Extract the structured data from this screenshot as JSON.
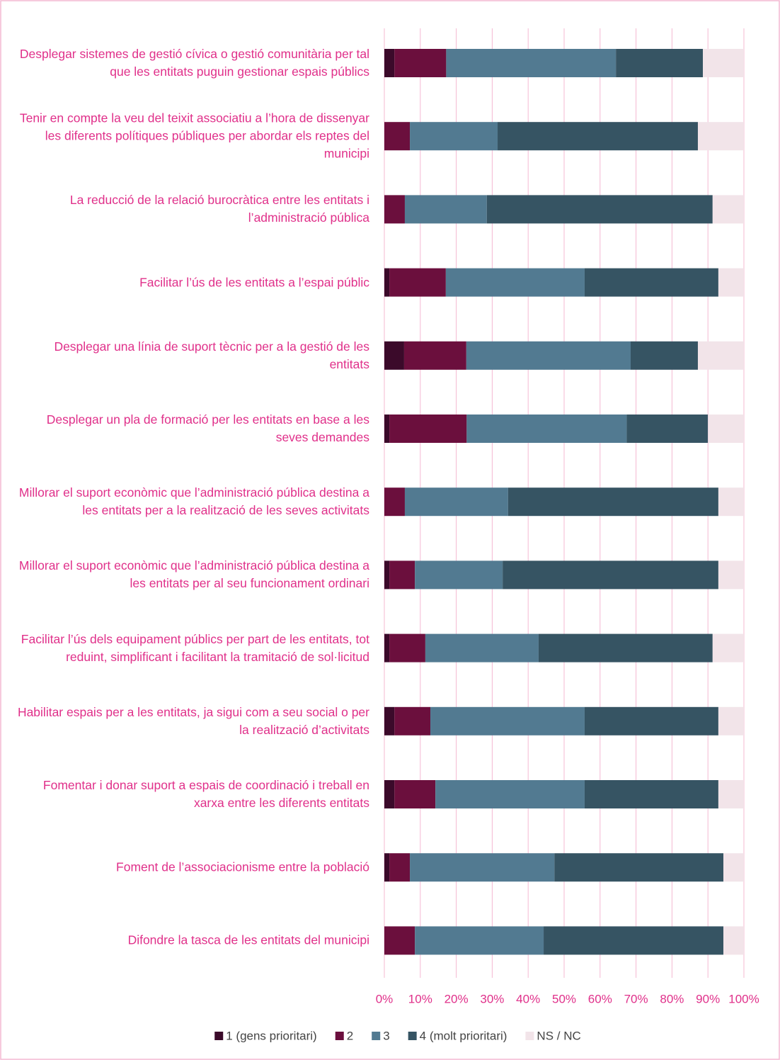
{
  "chart_data": {
    "type": "stacked_barh",
    "categories": [
      "Desplegar sistemes de gestió cívica o gestió comunitària per tal que les entitats puguin gestionar espais públics",
      "Tenir en compte la veu del teixit associatiu a l’hora de dissenyar les diferents polítiques públiques per abordar els reptes del municipi",
      "La reducció de la relació burocràtica entre les entitats i l’administració pública",
      "Facilitar l’ús de les entitats a l’espai públic",
      "Desplegar una línia de suport tècnic per a la gestió de les entitats",
      "Desplegar un pla de formació per les entitats en base a les seves demandes",
      "Millorar el suport econòmic que l’administració pública destina a les entitats per a la realització de les seves activitats",
      "Millorar el suport econòmic que l’administració pública destina a les entitats per al seu funcionament ordinari",
      "Facilitar l’ús dels equipament públics per part de les entitats, tot reduint, simplificant i facilitant la tramitació de sol·licitud",
      "Habilitar espais per a les entitats, ja sigui com a seu social o per la realització d’activitats",
      "Fomentar i donar suport a espais de coordinació i treball en xarxa entre les diferents entitats",
      "Foment de l’associacionisme entre la població",
      "Difondre la tasca de les entitats del municipi"
    ],
    "series": [
      {
        "name": "1 (gens prioritari)",
        "color": "#3b0a2a",
        "values": [
          2.8,
          0,
          0,
          1.4,
          5.5,
          1.4,
          0,
          1.4,
          1.4,
          2.8,
          2.8,
          1.4,
          0
        ]
      },
      {
        "name": "2",
        "color": "#6b0f3d",
        "values": [
          14.4,
          7.1,
          5.7,
          15.7,
          17.3,
          21.5,
          5.7,
          7.1,
          10.0,
          10.0,
          11.4,
          5.7,
          8.5
        ]
      },
      {
        "name": "3",
        "color": "#527a91",
        "values": [
          47.2,
          24.4,
          22.8,
          38.6,
          45.7,
          44.5,
          28.7,
          24.4,
          31.5,
          42.9,
          41.5,
          40.2,
          35.8
        ]
      },
      {
        "name": "4 (molt prioritari)",
        "color": "#365463",
        "values": [
          24.2,
          55.7,
          62.8,
          37.2,
          18.7,
          22.6,
          58.5,
          60.0,
          48.4,
          37.2,
          37.2,
          47.0,
          50.0
        ]
      },
      {
        "name": "NS / NC",
        "color": "#f2e4e9",
        "values": [
          11.4,
          12.8,
          8.7,
          7.1,
          12.8,
          10.0,
          7.1,
          7.1,
          8.7,
          7.1,
          7.1,
          5.7,
          5.7
        ]
      }
    ],
    "xlim": [
      0,
      100
    ],
    "xticks": [
      {
        "value": 0,
        "label": "0%"
      },
      {
        "value": 10,
        "label": "10%"
      },
      {
        "value": 20,
        "label": "20%"
      },
      {
        "value": 30,
        "label": "30%"
      },
      {
        "value": 40,
        "label": "40%"
      },
      {
        "value": 50,
        "label": "50%"
      },
      {
        "value": 60,
        "label": "60%"
      },
      {
        "value": 70,
        "label": "70%"
      },
      {
        "value": 80,
        "label": "80%"
      },
      {
        "value": 90,
        "label": "90%"
      },
      {
        "value": 100,
        "label": "100%"
      }
    ],
    "grid": true,
    "legend": "bottom"
  }
}
